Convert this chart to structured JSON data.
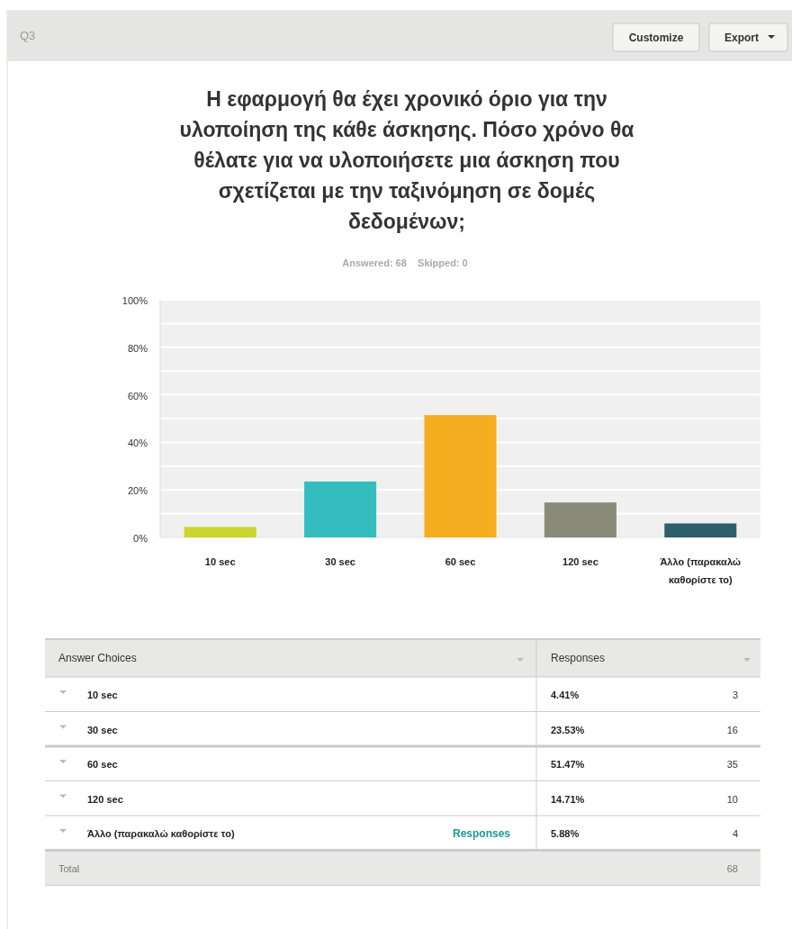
{
  "chart_data": [
    {
      "type": "bar",
      "title": "Η εφαρμογή θα έχει χρονικό όριο για την υλοποίηση της κάθε άσκησης. Πόσο χρόνο θα θέλατε για να υλοποιήσετε μια άσκηση που σχετίζεται με την ταξινόμηση σε δομές δεδομένων;",
      "subtitle": "Answered: 68    Skipped: 0",
      "annotations": [
        "Q3",
        "Customize",
        "Export"
      ],
      "categories": [
        "10 sec",
        "30 sec",
        "60 sec",
        "120 sec",
        "Άλλο (παρακαλώ καθορίστε το)"
      ],
      "values": [
        4.41,
        23.53,
        51.47,
        14.71,
        5.88
      ],
      "colors": [
        "#cdd52e",
        "#33bdbf",
        "#f5ae1f",
        "#8a8a78",
        "#2e5d6b"
      ],
      "ylim": [
        0,
        100
      ],
      "yticks": [
        {
          "value": 0,
          "label": "0%"
        },
        {
          "value": 10,
          "label": null
        },
        {
          "value": 20,
          "label": "20%"
        },
        {
          "value": 30,
          "label": null
        },
        {
          "value": 40,
          "label": "40%"
        },
        {
          "value": 50,
          "label": null
        },
        {
          "value": 60,
          "label": "60%"
        },
        {
          "value": 70,
          "label": null
        },
        {
          "value": 80,
          "label": "80%"
        },
        {
          "value": 90,
          "label": null
        },
        {
          "value": 100,
          "label": "100%"
        }
      ],
      "value_labels": [
        "4.41%",
        "23.53%",
        "51.47%",
        "14.71%",
        "5.88%"
      ],
      "grid": "y"
    },
    {
      "type": "other",
      "categories": [
        "10 sec",
        "30 sec",
        "60 sec",
        "120 sec",
        "Άλλο (παρακαλώ καθορίστε το)"
      ],
      "annotations": [
        "Answer Choices",
        "Responses",
        "Responses",
        "Total",
        "68",
        "3",
        "16",
        "35",
        "10",
        "4"
      ]
    }
  ]
}
